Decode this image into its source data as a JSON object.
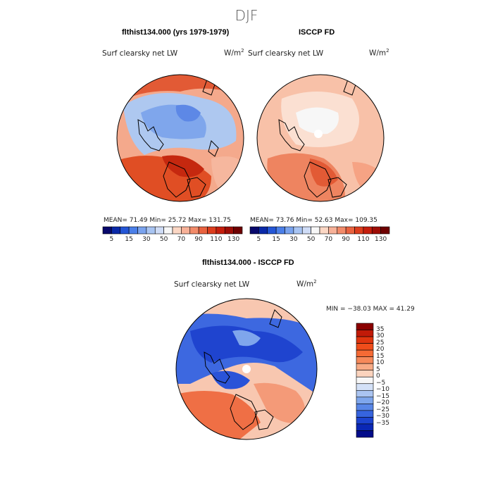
{
  "title": "DJF",
  "panels": [
    {
      "heading": "flthist134.000 (yrs 1979-1979)",
      "field_label": "Surf clearsky net LW",
      "units": "W/m",
      "units_exp": "2",
      "stats": "MEAN=  71.49  Min=  25.72  Max= 131.75"
    },
    {
      "heading": "ISCCP FD",
      "field_label": "Surf clearsky net LW",
      "units": "W/m",
      "units_exp": "2",
      "stats": "MEAN=  73.76  Min=  52.63  Max= 109.35"
    }
  ],
  "abs_colorbar": {
    "tick_labels": [
      "5",
      "15",
      "30",
      "50",
      "70",
      "90",
      "110",
      "130"
    ],
    "colors": [
      "#08086b",
      "#0a29a8",
      "#2456d6",
      "#4b7fe8",
      "#7aa3ee",
      "#a8c4f2",
      "#cfdcf6",
      "#f7f7f7",
      "#fbd7c4",
      "#f7b198",
      "#f28b6a",
      "#e9623f",
      "#dc3d1d",
      "#c51e0d",
      "#9e0d06",
      "#6e0000"
    ]
  },
  "difference": {
    "heading": "flthist134.000 - ISCCP FD",
    "field_label": "Surf clearsky net LW",
    "units": "W/m",
    "units_exp": "2",
    "stats": "MIN = −38.03 MAX =  41.29",
    "colorbar_labels": [
      "35",
      "30",
      "25",
      "20",
      "15",
      "10",
      "5",
      "0",
      "−5",
      "−10",
      "−15",
      "−20",
      "−25",
      "−30",
      "−35"
    ],
    "colorbar_colors": [
      "#8a0000",
      "#c11a08",
      "#e0350f",
      "#f04d1b",
      "#f56a35",
      "#f6895a",
      "#f8ab86",
      "#fbd3bd",
      "#f7f7f7",
      "#d4e1f7",
      "#aac4f1",
      "#7ea6ec",
      "#5886e7",
      "#3664de",
      "#1c43cf",
      "#0a27b5",
      "#020c8a"
    ]
  },
  "map_colors": {
    "land_outline": "#000000",
    "disk_outline": "#000000"
  }
}
